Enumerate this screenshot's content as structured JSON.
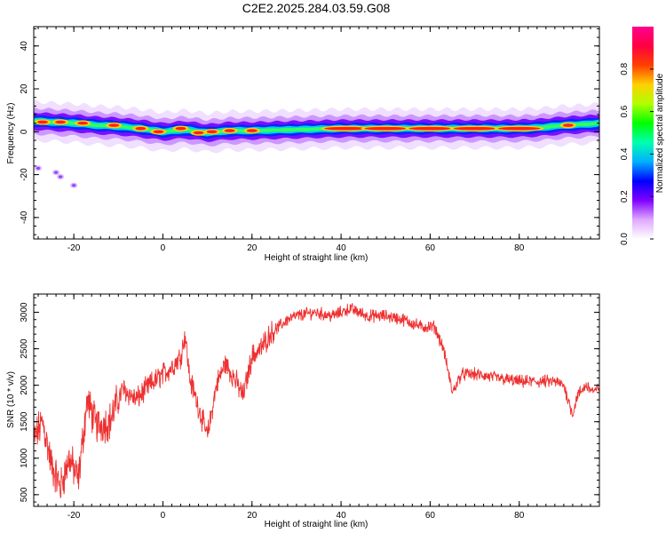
{
  "title": "C2E2.2025.284.03.59.G08",
  "chart_data": [
    {
      "type": "heatmap",
      "xlabel": "Height of straight line (km)",
      "ylabel": "Frequency (Hz)",
      "xlim": [
        -29,
        98
      ],
      "ylim": [
        -50,
        49
      ],
      "xticks": [
        -20,
        0,
        20,
        40,
        60,
        80
      ],
      "yticks": [
        -40,
        -20,
        0,
        20,
        40
      ],
      "colorbar": {
        "label": "Normalized spectral amplitude",
        "range": [
          0,
          1
        ],
        "ticks": [
          "0.0",
          "0.2",
          "0.4",
          "0.6",
          "0.8"
        ],
        "tick_values": [
          0,
          0.2,
          0.4,
          0.6,
          0.8
        ],
        "colors": [
          "#ffffff",
          "#e0a8ff",
          "#8000ff",
          "#0000ff",
          "#00b0ff",
          "#00ffb0",
          "#00ff00",
          "#b0ff00",
          "#ffd000",
          "#ff4000",
          "#ff0040",
          "#ff0090"
        ]
      },
      "ridge": [
        [
          -29,
          5
        ],
        [
          -25,
          4.5
        ],
        [
          -20,
          4
        ],
        [
          -15,
          3
        ],
        [
          -10,
          2.5
        ],
        [
          -5,
          1.5
        ],
        [
          0,
          0
        ],
        [
          5,
          1
        ],
        [
          10,
          -0.5
        ],
        [
          15,
          0.5
        ],
        [
          20,
          0.5
        ],
        [
          30,
          1
        ],
        [
          40,
          1.5
        ],
        [
          50,
          1.5
        ],
        [
          60,
          1.5
        ],
        [
          70,
          1.5
        ],
        [
          80,
          1.5
        ],
        [
          85,
          2
        ],
        [
          90,
          3
        ],
        [
          95,
          3.5
        ],
        [
          98,
          4
        ]
      ],
      "hot_spots": [
        [
          -27,
          4.5
        ],
        [
          -23,
          4.5
        ],
        [
          -18,
          4
        ],
        [
          -11,
          3
        ],
        [
          -5,
          1.5
        ],
        [
          -1,
          0
        ],
        [
          4,
          1.5
        ],
        [
          8,
          -0.5
        ],
        [
          11,
          0
        ],
        [
          15,
          0.5
        ],
        [
          20,
          0.5
        ],
        [
          41,
          1.5
        ],
        [
          50,
          1.5
        ],
        [
          60,
          1.5
        ],
        [
          70,
          1.5
        ],
        [
          80,
          1.5
        ],
        [
          91,
          3
        ]
      ],
      "scatter_blobs": [
        [
          -28,
          -17
        ],
        [
          -24,
          -19
        ],
        [
          -23,
          -21
        ],
        [
          -20,
          -25
        ]
      ]
    },
    {
      "type": "line",
      "xlabel": "Height of straight line (km)",
      "ylabel": "SNR (10 * v/v)",
      "xlim": [
        -29,
        98
      ],
      "ylim": [
        340,
        3250
      ],
      "xticks": [
        -20,
        0,
        20,
        40,
        60,
        80
      ],
      "yticks": [
        500,
        1000,
        1500,
        2000,
        2500,
        3000
      ],
      "color": "#ee3030",
      "envelope": [
        [
          -29,
          1250
        ],
        [
          -27,
          1500
        ],
        [
          -25,
          900
        ],
        [
          -23,
          600
        ],
        [
          -21,
          1000
        ],
        [
          -19,
          700
        ],
        [
          -17,
          1800
        ],
        [
          -15,
          1450
        ],
        [
          -12,
          1500
        ],
        [
          -9,
          1950
        ],
        [
          -6,
          1800
        ],
        [
          -3,
          2000
        ],
        [
          0,
          2150
        ],
        [
          2,
          2250
        ],
        [
          4,
          2400
        ],
        [
          5,
          2700
        ],
        [
          6,
          2100
        ],
        [
          8,
          1700
        ],
        [
          10,
          1300
        ],
        [
          12,
          2000
        ],
        [
          14,
          2300
        ],
        [
          16,
          2100
        ],
        [
          18,
          1850
        ],
        [
          20,
          2400
        ],
        [
          22,
          2500
        ],
        [
          24,
          2700
        ],
        [
          26,
          2800
        ],
        [
          28,
          2900
        ],
        [
          30,
          2950
        ],
        [
          34,
          3000
        ],
        [
          38,
          2950
        ],
        [
          42,
          3050
        ],
        [
          46,
          2950
        ],
        [
          50,
          2950
        ],
        [
          54,
          2900
        ],
        [
          58,
          2800
        ],
        [
          61,
          2800
        ],
        [
          63,
          2500
        ],
        [
          65,
          1900
        ],
        [
          67,
          2150
        ],
        [
          70,
          2150
        ],
        [
          75,
          2100
        ],
        [
          80,
          2050
        ],
        [
          85,
          2050
        ],
        [
          88,
          2050
        ],
        [
          90,
          2000
        ],
        [
          92,
          1600
        ],
        [
          93,
          1850
        ],
        [
          95,
          2000
        ],
        [
          97,
          1900
        ],
        [
          98,
          2000
        ]
      ]
    }
  ]
}
